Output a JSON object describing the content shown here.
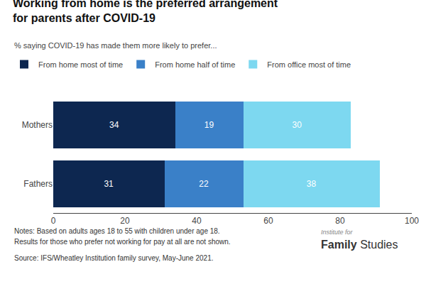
{
  "chart_data": {
    "type": "bar",
    "orientation": "horizontal",
    "stacked": true,
    "data_labels": true,
    "grid": false,
    "legend": "upper left",
    "title": [
      "Working from home is the preferred arrangement",
      "for parents after COVID-19"
    ],
    "subtitle": "% saying COVID-19 has made them more likely to prefer...",
    "categories": [
      "Mothers",
      "Fathers"
    ],
    "series": [
      {
        "name": "From home most of time",
        "color": "#0d2750",
        "values": [
          34,
          31
        ]
      },
      {
        "name": "From home half of time",
        "color": "#3a80c8",
        "values": [
          19,
          22
        ]
      },
      {
        "name": "From office most of time",
        "color": "#7dd8f0",
        "values": [
          30,
          38
        ]
      }
    ],
    "xlim": [
      0,
      100
    ],
    "xticks": [
      0,
      20,
      40,
      60,
      80,
      100
    ],
    "annotations": [
      "Notes: Based on adults ages 18 to 55 with children under age 18.",
      "Results for those who prefer not working for pay at all are not shown.",
      "Source: IFS/Wheatley Institution family survey, May-June 2021.",
      "Institute for",
      "Family",
      "Studies"
    ]
  }
}
